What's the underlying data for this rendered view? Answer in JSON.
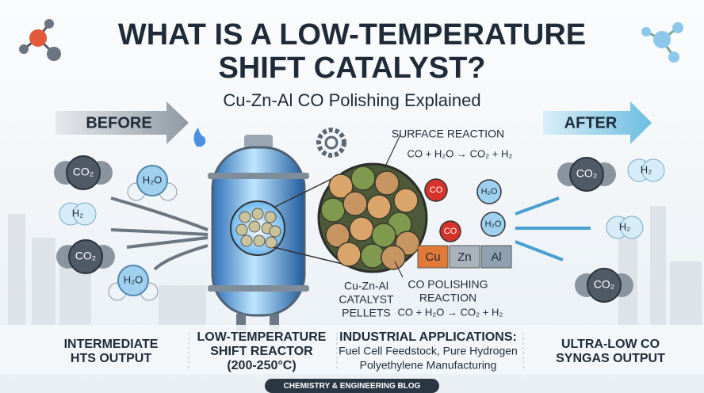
{
  "header": {
    "title_lines": [
      "WHAT IS A LOW-TEMPERATURE",
      "SHIFT CATALYST?"
    ],
    "subtitle": "Cu-Zn-Al CO Polishing Explained"
  },
  "labels": {
    "before": "BEFORE",
    "after": "AFTER"
  },
  "inputs": [
    "CO₂",
    "H₂O",
    "H₂",
    "CO₂",
    "H₂O"
  ],
  "outputs": [
    "CO₂",
    "H₂",
    "H₂",
    "CO₂"
  ],
  "surface_reaction": {
    "title": "SURFACE REACTION",
    "equation": "CO + H₂O → CO₂ + H₂"
  },
  "mechanism": {
    "molecules": [
      "CO",
      "H₂O",
      "CO",
      "H₂O"
    ],
    "metals": [
      "Cu",
      "Zn",
      "Al"
    ]
  },
  "polishing": {
    "title_lines": [
      "CO POLISHING",
      "REACTION"
    ],
    "equation": "CO + H₂O → CO₂ + H₂"
  },
  "pellets_lines": [
    "Cu-Zn-Al",
    "CATALYST",
    "PELLETS"
  ],
  "columns": [
    [
      "INTERMEDIATE",
      "HTS OUTPUT"
    ],
    [
      "LOW-TEMPERATURE",
      "SHIFT REACTOR",
      "(200-250°C)"
    ],
    [
      "INDUSTRIAL APPLICATIONS:",
      "Fuel Cell Feedstock, Pure Hydrogen",
      "Polyethylene Manufacturing"
    ],
    [
      "ULTRA-LOW CO",
      "SYNGAS OUTPUT"
    ]
  ],
  "footer": "CHEMISTRY & ENGINEERING BLOG"
}
